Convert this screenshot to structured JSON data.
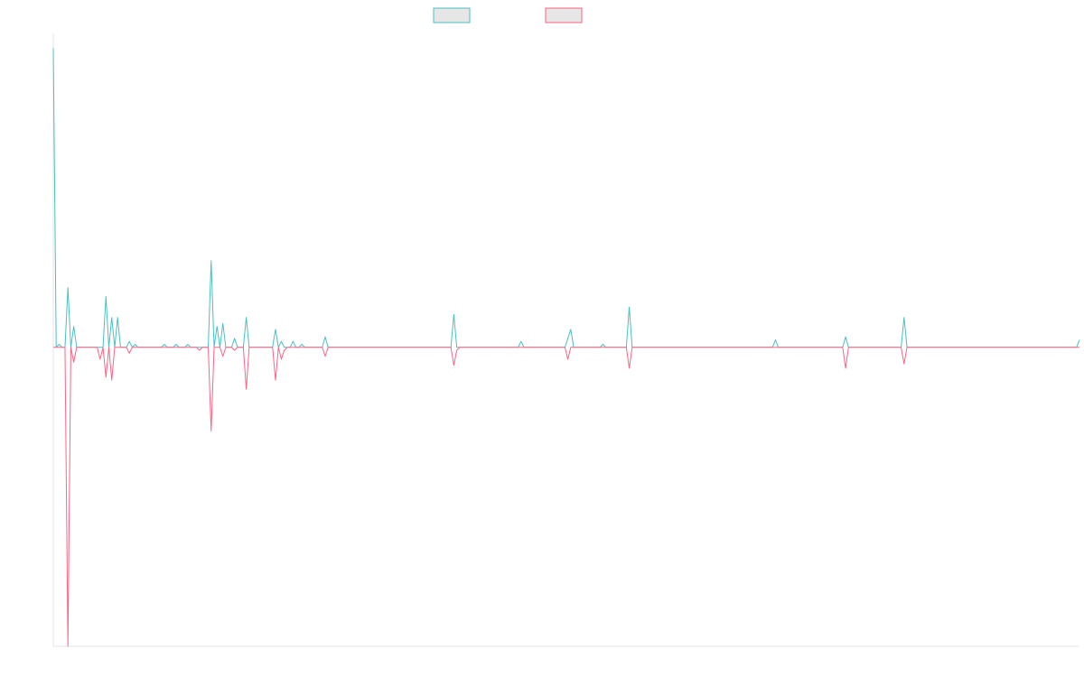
{
  "chart_data": {
    "type": "line",
    "title": "",
    "xlabel": "",
    "ylabel": "",
    "ylim": [
      -1.0,
      1.05
    ],
    "grid": false,
    "legend": "top-center",
    "colors": {
      "series_a": "#4bc0c0",
      "series_b": "#ff6384",
      "legend_fill": "#e6e6e6",
      "axis": "#e5e5e5"
    },
    "x_count": 352,
    "series": [
      {
        "name": "",
        "color": "#4bc0c0",
        "points": [
          [
            0,
            1.0
          ],
          [
            1,
            0.0
          ],
          [
            2,
            0.01
          ],
          [
            3,
            0.0
          ],
          [
            4,
            0.0
          ],
          [
            5,
            0.2
          ],
          [
            6,
            0.0
          ],
          [
            7,
            0.07
          ],
          [
            8,
            0.0
          ],
          [
            17,
            0.0
          ],
          [
            18,
            0.17
          ],
          [
            19,
            0.0
          ],
          [
            20,
            0.1
          ],
          [
            21,
            0.0
          ],
          [
            22,
            0.1
          ],
          [
            23,
            0.0
          ],
          [
            25,
            0.0
          ],
          [
            26,
            0.02
          ],
          [
            27,
            0.0
          ],
          [
            28,
            0.01
          ],
          [
            29,
            0.0
          ],
          [
            37,
            0.0
          ],
          [
            38,
            0.01
          ],
          [
            39,
            0.0
          ],
          [
            41,
            0.0
          ],
          [
            42,
            0.01
          ],
          [
            43,
            0.0
          ],
          [
            45,
            0.0
          ],
          [
            46,
            0.01
          ],
          [
            47,
            0.0
          ],
          [
            53,
            0.0
          ],
          [
            54,
            0.29
          ],
          [
            55,
            0.0
          ],
          [
            56,
            0.07
          ],
          [
            57,
            0.0
          ],
          [
            58,
            0.08
          ],
          [
            59,
            0.0
          ],
          [
            61,
            0.0
          ],
          [
            62,
            0.03
          ],
          [
            63,
            0.0
          ],
          [
            65,
            0.0
          ],
          [
            66,
            0.1
          ],
          [
            67,
            0.0
          ],
          [
            75,
            0.0
          ],
          [
            76,
            0.06
          ],
          [
            77,
            0.0
          ],
          [
            78,
            0.02
          ],
          [
            79,
            0.0
          ],
          [
            81,
            0.0
          ],
          [
            82,
            0.02
          ],
          [
            83,
            0.0
          ],
          [
            84,
            0.0
          ],
          [
            85,
            0.01
          ],
          [
            86,
            0.0
          ],
          [
            92,
            0.0
          ],
          [
            93,
            0.035
          ],
          [
            94,
            0.0
          ],
          [
            136,
            0.0
          ],
          [
            137,
            0.11
          ],
          [
            138,
            0.0
          ],
          [
            159,
            0.0
          ],
          [
            160,
            0.02
          ],
          [
            161,
            0.0
          ],
          [
            175,
            0.0
          ],
          [
            176,
            0.03
          ],
          [
            177,
            0.06
          ],
          [
            178,
            0.0
          ],
          [
            187,
            0.0
          ],
          [
            188,
            0.01
          ],
          [
            189,
            0.0
          ],
          [
            196,
            0.0
          ],
          [
            197,
            0.135
          ],
          [
            198,
            0.0
          ],
          [
            246,
            0.0
          ],
          [
            247,
            0.025
          ],
          [
            248,
            0.0
          ],
          [
            270,
            0.0
          ],
          [
            271,
            0.035
          ],
          [
            272,
            0.0
          ],
          [
            290,
            0.0
          ],
          [
            291,
            0.1
          ],
          [
            292,
            0.0
          ],
          [
            350,
            0.0
          ],
          [
            351,
            0.025
          ]
        ]
      },
      {
        "name": "",
        "color": "#ff6384",
        "points": [
          [
            0,
            0.0
          ],
          [
            4,
            0.0
          ],
          [
            5,
            -1.0
          ],
          [
            6,
            0.0
          ],
          [
            7,
            -0.05
          ],
          [
            8,
            0.0
          ],
          [
            15,
            0.0
          ],
          [
            16,
            -0.04
          ],
          [
            17,
            0.0
          ],
          [
            18,
            -0.1
          ],
          [
            19,
            0.0
          ],
          [
            20,
            -0.11
          ],
          [
            21,
            0.0
          ],
          [
            25,
            0.0
          ],
          [
            26,
            -0.02
          ],
          [
            27,
            0.0
          ],
          [
            49,
            0.0
          ],
          [
            50,
            -0.01
          ],
          [
            51,
            0.0
          ],
          [
            53,
            0.0
          ],
          [
            54,
            -0.28
          ],
          [
            55,
            0.0
          ],
          [
            57,
            0.0
          ],
          [
            58,
            -0.03
          ],
          [
            59,
            0.0
          ],
          [
            61,
            0.0
          ],
          [
            62,
            -0.01
          ],
          [
            63,
            0.0
          ],
          [
            65,
            0.0
          ],
          [
            66,
            -0.14
          ],
          [
            67,
            0.0
          ],
          [
            75,
            0.0
          ],
          [
            76,
            -0.11
          ],
          [
            77,
            0.0
          ],
          [
            78,
            -0.04
          ],
          [
            79,
            -0.01
          ],
          [
            80,
            0.0
          ],
          [
            92,
            0.0
          ],
          [
            93,
            -0.03
          ],
          [
            94,
            0.0
          ],
          [
            136,
            0.0
          ],
          [
            137,
            -0.06
          ],
          [
            138,
            -0.01
          ],
          [
            139,
            0.0
          ],
          [
            175,
            0.0
          ],
          [
            176,
            -0.04
          ],
          [
            177,
            0.0
          ],
          [
            196,
            0.0
          ],
          [
            197,
            -0.07
          ],
          [
            198,
            0.0
          ],
          [
            270,
            0.0
          ],
          [
            271,
            -0.07
          ],
          [
            272,
            0.0
          ],
          [
            290,
            0.0
          ],
          [
            291,
            -0.055
          ],
          [
            292,
            0.0
          ],
          [
            351,
            0.0
          ]
        ]
      }
    ]
  }
}
